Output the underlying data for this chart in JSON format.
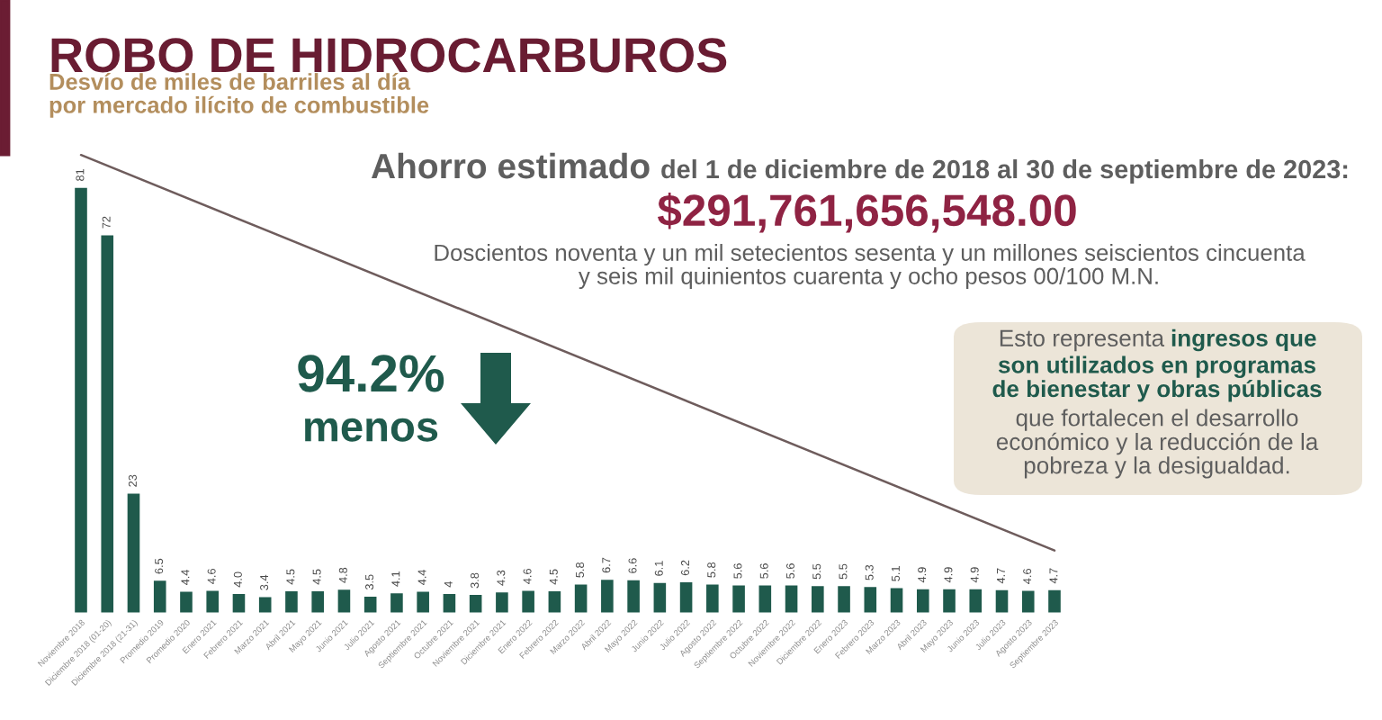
{
  "chart_data": {
    "type": "bar",
    "title": "ROBO DE HIDROCARBUROS",
    "subtitle": "Desvío de miles de barriles al día\npor mercado ilícito de combustible",
    "categories": [
      "Noviembre 2018",
      "Diciembre 2018 (01-20)",
      "Diciembre 2018 (21-31)",
      "Promedio 2019",
      "Promedio 2020",
      "Enero 2021",
      "Febrero 2021",
      "Marzo 2021",
      "Abril 2021",
      "Mayo 2021",
      "Junio 2021",
      "Julio 2021",
      "Agosto 2021",
      "Septiembre 2021",
      "Octubre 2021",
      "Noviembre 2021",
      "Diciembre 2021",
      "Enero 2022",
      "Febrero 2022",
      "Marzo 2022",
      "Abril 2022",
      "Mayo 2022",
      "Junio 2022",
      "Julio 2022",
      "Agosto 2022",
      "Septiembre 2022",
      "Octubre 2022",
      "Noviembre 2022",
      "Diciembre 2022",
      "Enero 2023",
      "Febrero 2023",
      "Marzo 2023",
      "Abril 2023",
      "Mayo 2023",
      "Junio 2023",
      "Julio 2023",
      "Agosto 2023",
      "Septiembre 2023"
    ],
    "series": [
      {
        "color": "#1f5a4c",
        "values": [
          81,
          72,
          23,
          6.5,
          4.4,
          4.6,
          4.0,
          3.4,
          4.5,
          4.5,
          4.8,
          3.5,
          4.1,
          4.4,
          4,
          3.8,
          4.3,
          4.6,
          4.5,
          5.8,
          6.7,
          6.6,
          6.1,
          6.2,
          5.8,
          5.6,
          5.6,
          5.6,
          5.5,
          5.5,
          5.3,
          5.1,
          4.9,
          4.9,
          4.9,
          4.7,
          4.6,
          4.7
        ],
        "value_labels": [
          "81",
          "72",
          "23",
          "6.5",
          "4.4",
          "4.6",
          "4.0",
          "3.4",
          "4.5",
          "4.5",
          "4.8",
          "3.5",
          "4.1",
          "4.4",
          "4",
          "3.8",
          "4.3",
          "4.6",
          "4.5",
          "5.8",
          "6.7",
          "6.6",
          "6.1",
          "6.2",
          "5.8",
          "5.6",
          "5.6",
          "5.6",
          "5.5",
          "5.5",
          "5.3",
          "5.1",
          "4.9",
          "4.9",
          "4.9",
          "4.7",
          "4.6",
          "4.7"
        ]
      },
      {
        "type": "line",
        "color": "#6e5c5c",
        "x": [
          "Noviembre 2018",
          "Septiembre 2023"
        ],
        "values": [
          87,
          12
        ]
      }
    ],
    "tick_labels": "x",
    "annotations": [
      "Ahorro estimado",
      "del 1 de diciembre de 2018 al 30 de septiembre de 2023:",
      "$291,761,656,548.00",
      "Doscientos noventa y un mil setecientos sesenta y un millones seiscientos cincuenta\ny seis mil quinientos cuarenta y ocho pesos 00/100 M.N.",
      "Esto representa ",
      "ingresos que",
      "son utilizados en programas\nde bienestar y obras públicas",
      "que fortalecen el desarrollo\neconómico y la reducción de la\npobreza y la desigualdad.",
      "94.2%",
      "menos"
    ]
  }
}
